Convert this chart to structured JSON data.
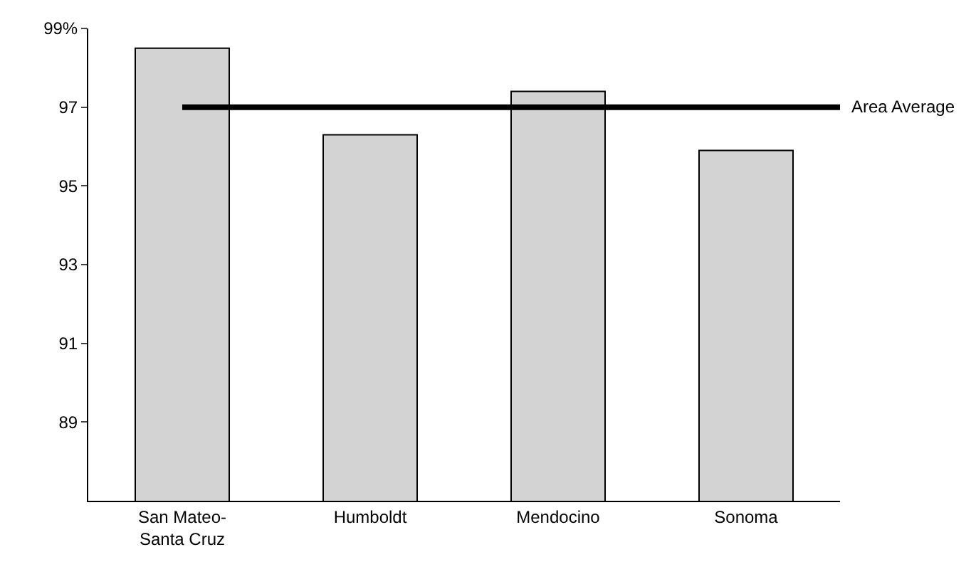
{
  "chart_data": {
    "type": "bar",
    "categories": [
      "San Mateo-\nSanta Cruz",
      "Humboldt",
      "Mendocino",
      "Sonoma"
    ],
    "values": [
      98.5,
      96.3,
      97.4,
      95.9
    ],
    "color": "#d3d3d3",
    "ylim": [
      87,
      99
    ],
    "yticks": [
      {
        "value": 89,
        "label": "89"
      },
      {
        "value": 91,
        "label": "91"
      },
      {
        "value": 93,
        "label": "93"
      },
      {
        "value": 95,
        "label": "95"
      },
      {
        "value": 97,
        "label": "97"
      },
      {
        "value": 99,
        "label": "99%"
      }
    ],
    "ref_lines": [
      {
        "axis": "y",
        "value": 97,
        "label": "Area Average",
        "color": "#000000",
        "line_style": "solid"
      }
    ]
  }
}
